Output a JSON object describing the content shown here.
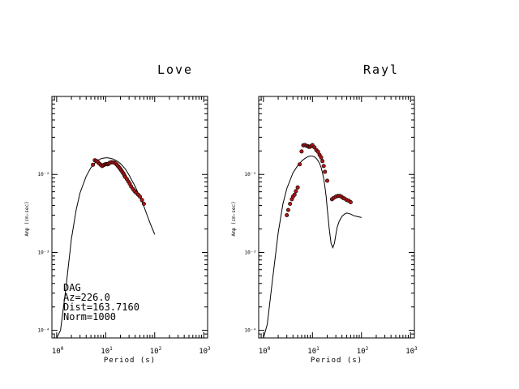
{
  "chart_data": [
    {
      "type": "scatter",
      "title": "Love",
      "xlabel": "Period (s)",
      "ylabel": "Amp (cm-sec)",
      "xscale": "log",
      "yscale": "log",
      "xlim": [
        0.8,
        1200
      ],
      "ylim": [
        8e-05,
        0.1
      ],
      "x_ticks": [
        {
          "base": "10",
          "exp": "0"
        },
        {
          "base": "10",
          "exp": "1"
        },
        {
          "base": "10",
          "exp": "2"
        },
        {
          "base": "10",
          "exp": "3"
        }
      ],
      "y_ticks": [
        {
          "value": 0.01,
          "label": "10⁻²"
        },
        {
          "value": 0.001,
          "label": "10⁻³"
        },
        {
          "value": 0.0001,
          "label": "10⁻⁴"
        }
      ],
      "annotations": [
        "DAG",
        "Az=226.0",
        "Dist=163.7160",
        "Norm=1000"
      ],
      "series": [
        {
          "kind": "line",
          "color": "#000000",
          "x": [
            1.0,
            1.2,
            1.5,
            2.0,
            2.5,
            3.0,
            4.0,
            5.0,
            6.0,
            7.0,
            8.0,
            9.0,
            10.0,
            11.0,
            12.0,
            14.0,
            16.0,
            18.0,
            20.0,
            25.0,
            30.0,
            40.0,
            50.0,
            60.0,
            70.0,
            80.0,
            90.0,
            100.0
          ],
          "y": [
            7e-05,
            0.0001,
            0.0003,
            0.0015,
            0.0035,
            0.0058,
            0.0095,
            0.0122,
            0.014,
            0.0152,
            0.0159,
            0.0162,
            0.0163,
            0.0163,
            0.0162,
            0.0158,
            0.0152,
            0.0145,
            0.0138,
            0.0118,
            0.0098,
            0.007,
            0.0051,
            0.0039,
            0.003,
            0.0024,
            0.002,
            0.0017
          ]
        },
        {
          "kind": "points",
          "color": "#b01414",
          "x": [
            5.5,
            6.0,
            6.5,
            7.0,
            7.5,
            8.0,
            8.5,
            9.0,
            9.5,
            10.0,
            10.5,
            11.0,
            11.5,
            12.0,
            13.0,
            14.0,
            15.0,
            16.0,
            17.0,
            18.0,
            19.0,
            20.0,
            21.0,
            22.0,
            23.0,
            24.0,
            25.0,
            27.0,
            29.0,
            31.0,
            33.0,
            36.0,
            39.0,
            42.0,
            46.0,
            50.0,
            55.0,
            60.0
          ],
          "y": [
            0.0133,
            0.0152,
            0.0149,
            0.0143,
            0.0137,
            0.0132,
            0.0128,
            0.0131,
            0.0134,
            0.0135,
            0.0136,
            0.0135,
            0.0137,
            0.0141,
            0.0143,
            0.0143,
            0.0142,
            0.0138,
            0.0133,
            0.0127,
            0.0122,
            0.0117,
            0.0112,
            0.0107,
            0.0103,
            0.0098,
            0.0093,
            0.0087,
            0.0081,
            0.0076,
            0.007,
            0.0065,
            0.0061,
            0.0058,
            0.0055,
            0.0052,
            0.0047,
            0.0042
          ]
        }
      ]
    },
    {
      "type": "scatter",
      "title": "Rayl",
      "xlabel": "Period (s)",
      "ylabel": "Amp (cm-sec)",
      "xscale": "log",
      "yscale": "log",
      "xlim": [
        0.8,
        1200
      ],
      "ylim": [
        8e-05,
        0.1
      ],
      "x_ticks": [
        {
          "base": "10",
          "exp": "0"
        },
        {
          "base": "10",
          "exp": "1"
        },
        {
          "base": "10",
          "exp": "2"
        },
        {
          "base": "10",
          "exp": "3"
        }
      ],
      "y_ticks": [
        {
          "value": 0.01,
          "label": "10⁻²"
        },
        {
          "value": 0.001,
          "label": "10⁻³"
        },
        {
          "value": 0.0001,
          "label": "10⁻⁴"
        }
      ],
      "series": [
        {
          "kind": "line",
          "color": "#000000",
          "x": [
            1.0,
            1.2,
            1.5,
            2.0,
            2.5,
            3.0,
            4.0,
            5.0,
            6.0,
            7.0,
            8.0,
            9.0,
            10.0,
            11.0,
            12.0,
            13.0,
            14.0,
            15.0,
            16.0,
            17.0,
            18.0,
            19.0,
            20.0,
            22.0,
            24.0,
            26.0,
            28.0,
            30.0,
            32.0,
            35.0,
            40.0,
            45.0,
            50.0,
            60.0,
            70.0,
            80.0,
            100.0
          ],
          "y": [
            8e-05,
            0.00012,
            0.0004,
            0.0018,
            0.0042,
            0.0066,
            0.0105,
            0.013,
            0.0148,
            0.016,
            0.0168,
            0.0172,
            0.0172,
            0.0168,
            0.016,
            0.015,
            0.0138,
            0.0123,
            0.0106,
            0.0088,
            0.0069,
            0.0052,
            0.0037,
            0.002,
            0.0013,
            0.00115,
            0.0013,
            0.0017,
            0.0021,
            0.0025,
            0.0029,
            0.0031,
            0.0032,
            0.0031,
            0.00295,
            0.0029,
            0.0028
          ]
        },
        {
          "kind": "points",
          "color": "#b01414",
          "x": [
            3.0,
            3.2,
            3.5,
            3.8,
            4.0,
            4.3,
            4.6,
            5.0,
            5.5,
            6.0,
            6.5,
            7.0,
            7.5,
            8.0,
            8.5,
            9.0,
            9.5,
            10.0,
            11.0,
            12.0,
            13.0,
            14.0,
            15.0,
            16.0,
            17.0,
            18.0,
            20.0,
            25.0,
            27.0,
            30.0,
            33.0,
            36.0,
            39.0,
            42.0,
            45.0,
            50.0,
            55.0,
            60.0
          ],
          "y": [
            0.003,
            0.0035,
            0.0042,
            0.0048,
            0.0052,
            0.0055,
            0.0061,
            0.0068,
            0.0135,
            0.0197,
            0.0236,
            0.0238,
            0.0233,
            0.023,
            0.0225,
            0.0227,
            0.0232,
            0.0238,
            0.0222,
            0.0205,
            0.0195,
            0.0178,
            0.0165,
            0.0148,
            0.0128,
            0.0108,
            0.0083,
            0.0048,
            0.005,
            0.0052,
            0.0053,
            0.0053,
            0.0052,
            0.005,
            0.0049,
            0.0047,
            0.0046,
            0.0044
          ]
        }
      ]
    }
  ]
}
